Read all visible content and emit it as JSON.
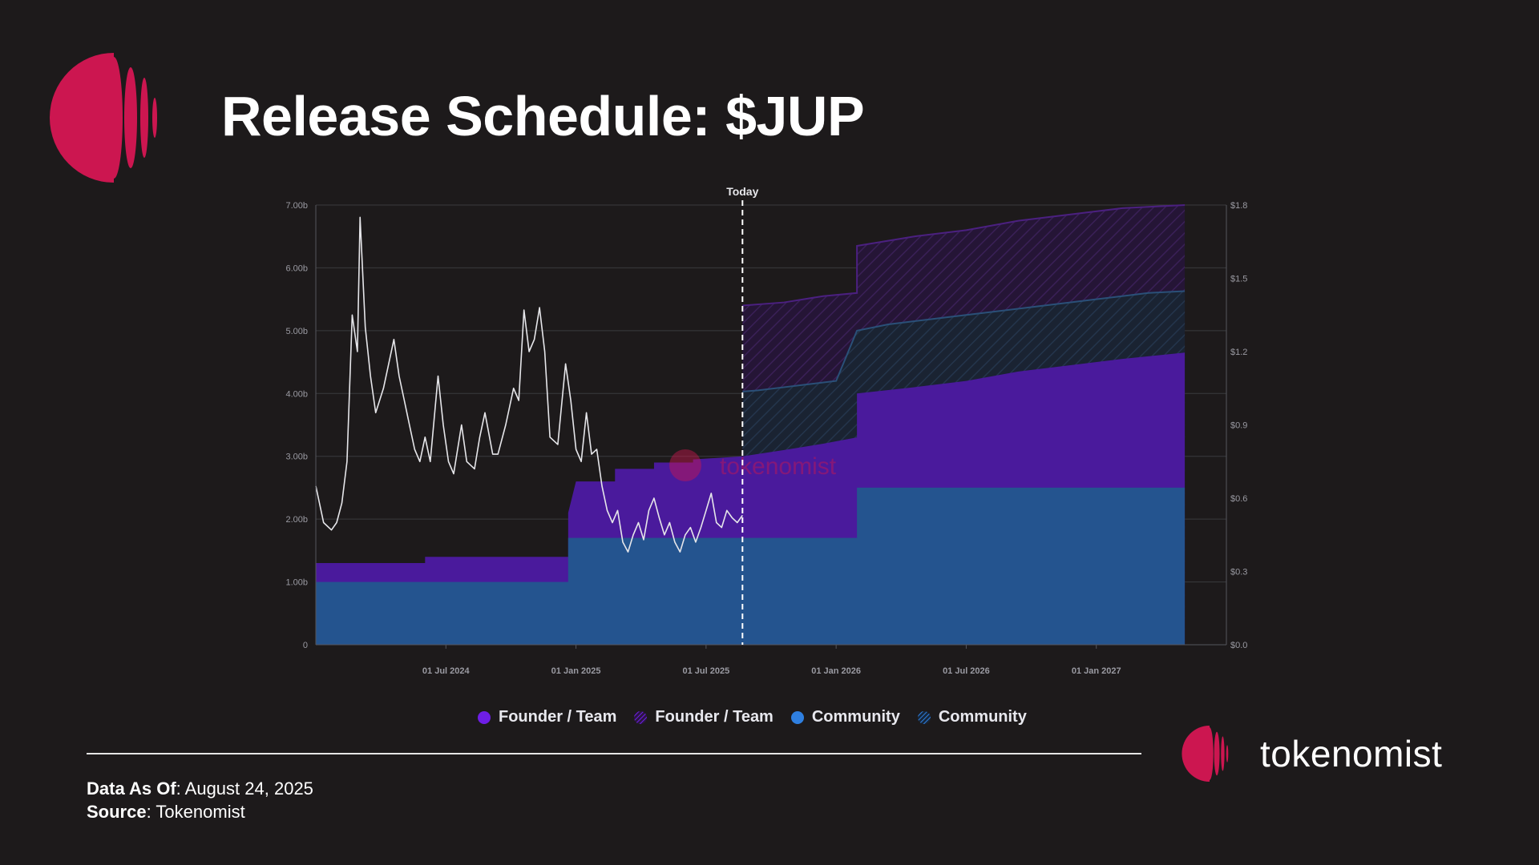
{
  "title": "Release Schedule: $JUP",
  "brand": {
    "name": "tokenomist",
    "watermark": "tokenomist"
  },
  "footer": {
    "data_as_of_label": "Data As Of",
    "data_as_of_value": ": August 24, 2025",
    "source_label": "Source",
    "source_value": ": Tokenomist"
  },
  "colors": {
    "background": "#1d1a1b",
    "founder_team": "#4a1a9c",
    "community": "#24548f",
    "brand": "#cc1650"
  },
  "chart_data": {
    "type": "area",
    "stacked": true,
    "today_label": "Today",
    "today_x": 2025.64,
    "x_range": [
      2024.0,
      2027.5
    ],
    "x_ticks": [
      {
        "label": "01 Jul 2024",
        "x": 2024.5
      },
      {
        "label": "01 Jan 2025",
        "x": 2025.0
      },
      {
        "label": "01 Jul 2025",
        "x": 2025.5
      },
      {
        "label": "01 Jan 2026",
        "x": 2026.0
      },
      {
        "label": "01 Jul 2026",
        "x": 2026.5
      },
      {
        "label": "01 Jan 2027",
        "x": 2027.0
      }
    ],
    "y_left": {
      "range": [
        0,
        7
      ],
      "ticks": [
        "0",
        "1.00b",
        "2.00b",
        "3.00b",
        "4.00b",
        "5.00b",
        "6.00b",
        "7.00b"
      ]
    },
    "y_right": {
      "range": [
        0,
        1.8
      ],
      "ticks": [
        "$0.0",
        "$0.3",
        "$0.6",
        "$0.9",
        "$1.2",
        "$1.5",
        "$1.8"
      ]
    },
    "legend": [
      {
        "name": "Founder / Team",
        "style": "solid"
      },
      {
        "name": "Founder / Team",
        "style": "hatched"
      },
      {
        "name": "Community",
        "style": "solid"
      },
      {
        "name": "Community",
        "style": "hatched"
      }
    ],
    "series": [
      {
        "name": "Community",
        "unit": "billion tokens",
        "steps": [
          [
            2024.0,
            1.0
          ],
          [
            2024.97,
            1.0
          ],
          [
            2024.97,
            1.7
          ],
          [
            2026.08,
            1.7
          ],
          [
            2026.08,
            2.5
          ],
          [
            2027.34,
            2.5
          ]
        ]
      },
      {
        "name": "Community (projected)",
        "unit": "billion tokens",
        "steps": [
          [
            2025.64,
            4.03
          ],
          [
            2025.7,
            4.05
          ],
          [
            2025.8,
            4.1
          ],
          [
            2025.9,
            4.15
          ],
          [
            2026.0,
            4.2
          ],
          [
            2026.08,
            5.0
          ],
          [
            2026.2,
            5.1
          ],
          [
            2026.4,
            5.2
          ],
          [
            2026.6,
            5.3
          ],
          [
            2026.8,
            5.4
          ],
          [
            2027.0,
            5.5
          ],
          [
            2027.2,
            5.6
          ],
          [
            2027.34,
            5.63
          ]
        ]
      },
      {
        "name": "Founder / Team",
        "unit": "billion tokens (stack top)",
        "steps": [
          [
            2024.0,
            1.3
          ],
          [
            2024.42,
            1.3
          ],
          [
            2024.42,
            1.4
          ],
          [
            2024.97,
            1.4
          ],
          [
            2024.97,
            2.1
          ],
          [
            2025.0,
            2.6
          ],
          [
            2025.15,
            2.6
          ],
          [
            2025.15,
            2.8
          ],
          [
            2025.3,
            2.8
          ],
          [
            2025.3,
            2.9
          ],
          [
            2025.45,
            2.9
          ],
          [
            2025.45,
            2.95
          ],
          [
            2025.64,
            3.0
          ],
          [
            2025.8,
            3.1
          ],
          [
            2025.95,
            3.2
          ],
          [
            2026.08,
            3.3
          ],
          [
            2026.08,
            4.0
          ],
          [
            2026.3,
            4.1
          ],
          [
            2026.5,
            4.2
          ],
          [
            2026.7,
            4.35
          ],
          [
            2026.9,
            4.45
          ],
          [
            2027.1,
            4.55
          ],
          [
            2027.34,
            4.65
          ]
        ]
      },
      {
        "name": "Founder / Team (projected)",
        "unit": "billion tokens (stack top)",
        "steps": [
          [
            2025.64,
            5.4
          ],
          [
            2025.8,
            5.45
          ],
          [
            2025.95,
            5.55
          ],
          [
            2026.08,
            5.6
          ],
          [
            2026.08,
            6.35
          ],
          [
            2026.3,
            6.5
          ],
          [
            2026.5,
            6.6
          ],
          [
            2026.7,
            6.75
          ],
          [
            2026.9,
            6.85
          ],
          [
            2027.1,
            6.95
          ],
          [
            2027.34,
            7.0
          ]
        ]
      },
      {
        "name": "Price",
        "unit": "USD",
        "axis": "right",
        "points": [
          [
            2024.0,
            0.65
          ],
          [
            2024.03,
            0.5
          ],
          [
            2024.06,
            0.47
          ],
          [
            2024.08,
            0.5
          ],
          [
            2024.1,
            0.58
          ],
          [
            2024.12,
            0.75
          ],
          [
            2024.14,
            1.35
          ],
          [
            2024.16,
            1.2
          ],
          [
            2024.17,
            1.75
          ],
          [
            2024.19,
            1.3
          ],
          [
            2024.21,
            1.1
          ],
          [
            2024.23,
            0.95
          ],
          [
            2024.26,
            1.05
          ],
          [
            2024.28,
            1.15
          ],
          [
            2024.3,
            1.25
          ],
          [
            2024.32,
            1.1
          ],
          [
            2024.34,
            1.0
          ],
          [
            2024.36,
            0.9
          ],
          [
            2024.38,
            0.8
          ],
          [
            2024.4,
            0.75
          ],
          [
            2024.42,
            0.85
          ],
          [
            2024.44,
            0.75
          ],
          [
            2024.47,
            1.1
          ],
          [
            2024.49,
            0.9
          ],
          [
            2024.51,
            0.75
          ],
          [
            2024.53,
            0.7
          ],
          [
            2024.56,
            0.9
          ],
          [
            2024.58,
            0.75
          ],
          [
            2024.61,
            0.72
          ],
          [
            2024.63,
            0.85
          ],
          [
            2024.65,
            0.95
          ],
          [
            2024.68,
            0.78
          ],
          [
            2024.7,
            0.78
          ],
          [
            2024.73,
            0.9
          ],
          [
            2024.76,
            1.05
          ],
          [
            2024.78,
            1.0
          ],
          [
            2024.8,
            1.37
          ],
          [
            2024.82,
            1.2
          ],
          [
            2024.84,
            1.25
          ],
          [
            2024.86,
            1.38
          ],
          [
            2024.88,
            1.2
          ],
          [
            2024.9,
            0.85
          ],
          [
            2024.93,
            0.82
          ],
          [
            2024.96,
            1.15
          ],
          [
            2024.98,
            1.0
          ],
          [
            2025.0,
            0.8
          ],
          [
            2025.02,
            0.75
          ],
          [
            2025.04,
            0.95
          ],
          [
            2025.06,
            0.78
          ],
          [
            2025.08,
            0.8
          ],
          [
            2025.1,
            0.65
          ],
          [
            2025.12,
            0.55
          ],
          [
            2025.14,
            0.5
          ],
          [
            2025.16,
            0.55
          ],
          [
            2025.18,
            0.42
          ],
          [
            2025.2,
            0.38
          ],
          [
            2025.22,
            0.45
          ],
          [
            2025.24,
            0.5
          ],
          [
            2025.26,
            0.43
          ],
          [
            2025.28,
            0.55
          ],
          [
            2025.3,
            0.6
          ],
          [
            2025.32,
            0.52
          ],
          [
            2025.34,
            0.45
          ],
          [
            2025.36,
            0.5
          ],
          [
            2025.38,
            0.42
          ],
          [
            2025.4,
            0.38
          ],
          [
            2025.42,
            0.45
          ],
          [
            2025.44,
            0.48
          ],
          [
            2025.46,
            0.42
          ],
          [
            2025.48,
            0.48
          ],
          [
            2025.5,
            0.55
          ],
          [
            2025.52,
            0.62
          ],
          [
            2025.54,
            0.5
          ],
          [
            2025.56,
            0.48
          ],
          [
            2025.58,
            0.55
          ],
          [
            2025.6,
            0.52
          ],
          [
            2025.62,
            0.5
          ],
          [
            2025.64,
            0.53
          ]
        ]
      }
    ]
  }
}
